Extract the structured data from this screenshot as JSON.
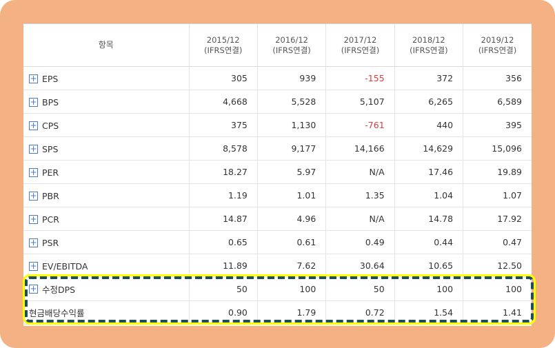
{
  "header": {
    "item_label": "항목",
    "periods": [
      {
        "year": "2015/12",
        "basis": "(IFRS연결)"
      },
      {
        "year": "2016/12",
        "basis": "(IFRS연결)"
      },
      {
        "year": "2017/12",
        "basis": "(IFRS연결)"
      },
      {
        "year": "2018/12",
        "basis": "(IFRS연결)"
      },
      {
        "year": "2019/12",
        "basis": "(IFRS연결)"
      }
    ]
  },
  "expand_symbol": "+",
  "rows": [
    {
      "label": "EPS",
      "values": [
        "305",
        "939",
        "-155",
        "372",
        "356"
      ]
    },
    {
      "label": "BPS",
      "values": [
        "4,668",
        "5,528",
        "5,107",
        "6,265",
        "6,589"
      ]
    },
    {
      "label": "CPS",
      "values": [
        "375",
        "1,130",
        "-761",
        "440",
        "395"
      ]
    },
    {
      "label": "SPS",
      "values": [
        "8,578",
        "9,177",
        "14,166",
        "14,629",
        "15,096"
      ]
    },
    {
      "label": "PER",
      "values": [
        "18.27",
        "5.97",
        "N/A",
        "17.46",
        "19.89"
      ]
    },
    {
      "label": "PBR",
      "values": [
        "1.19",
        "1.01",
        "1.35",
        "1.04",
        "1.07"
      ]
    },
    {
      "label": "PCR",
      "values": [
        "14.87",
        "4.96",
        "N/A",
        "14.78",
        "17.92"
      ]
    },
    {
      "label": "PSR",
      "values": [
        "0.65",
        "0.61",
        "0.49",
        "0.44",
        "0.47"
      ]
    },
    {
      "label": "EV/EBITDA",
      "values": [
        "11.89",
        "7.62",
        "30.64",
        "10.65",
        "12.50"
      ]
    },
    {
      "label": "수정DPS",
      "values": [
        "50",
        "100",
        "50",
        "100",
        "100"
      ]
    },
    {
      "label": "현금배당수익률",
      "values": [
        "0.90",
        "1.79",
        "0.72",
        "1.54",
        "1.41"
      ]
    }
  ],
  "colors": {
    "frame": "#f4b183",
    "negative": "#e03a3a",
    "highlight_dash": "#1f4e5b",
    "highlight_glow": "#ffff00",
    "expand_icon": "#4a78c4"
  }
}
